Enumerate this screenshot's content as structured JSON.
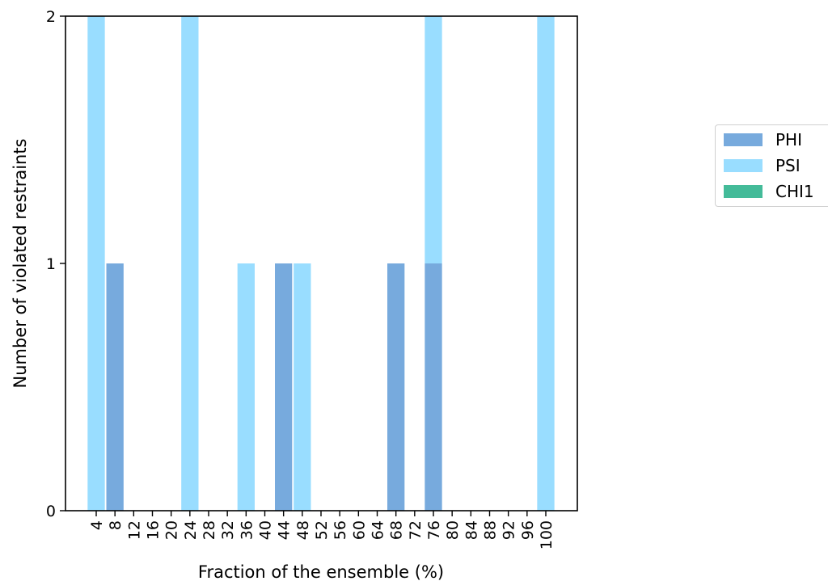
{
  "chart_data": {
    "type": "bar",
    "stacked": true,
    "xlabel": "Fraction of the ensemble (%)",
    "ylabel": "Number of violated restraints",
    "categories": [
      "4",
      "8",
      "12",
      "16",
      "20",
      "24",
      "28",
      "32",
      "36",
      "40",
      "44",
      "48",
      "52",
      "56",
      "60",
      "64",
      "68",
      "72",
      "76",
      "80",
      "84",
      "88",
      "92",
      "96",
      "100"
    ],
    "series": [
      {
        "name": "PHI",
        "color": "#77aadd",
        "values": [
          0,
          1,
          0,
          0,
          0,
          0,
          0,
          0,
          0,
          0,
          1,
          0,
          0,
          0,
          0,
          0,
          1,
          0,
          1,
          0,
          0,
          0,
          0,
          0,
          0
        ]
      },
      {
        "name": "PSI",
        "color": "#99ddff",
        "values": [
          2,
          0,
          0,
          0,
          0,
          2,
          0,
          0,
          1,
          0,
          0,
          1,
          0,
          0,
          0,
          0,
          0,
          0,
          1,
          0,
          0,
          0,
          0,
          0,
          2
        ]
      },
      {
        "name": "CHI1",
        "color": "#44bb99",
        "values": [
          0,
          0,
          0,
          0,
          0,
          0,
          0,
          0,
          0,
          0,
          0,
          0,
          0,
          0,
          0,
          0,
          0,
          0,
          0,
          0,
          0,
          0,
          0,
          0,
          0
        ]
      }
    ],
    "yticks": [
      "0",
      "1",
      "2"
    ],
    "ylim": [
      0,
      2
    ],
    "legend_position": "right",
    "grid": false
  }
}
